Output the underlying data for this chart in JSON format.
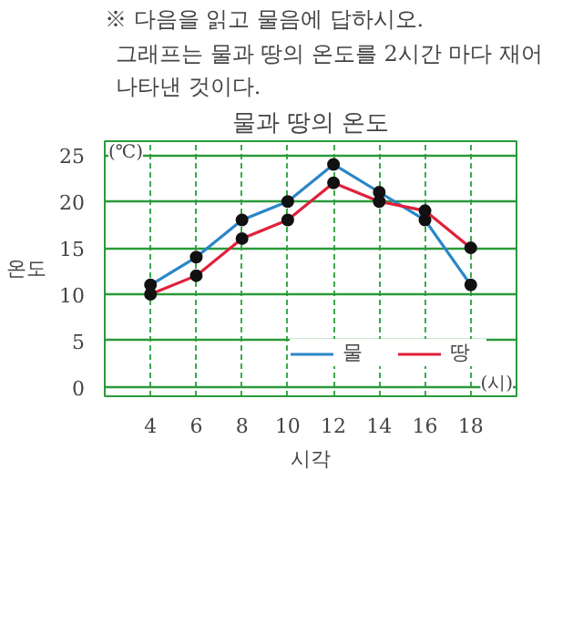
{
  "chart_data": {
    "type": "line",
    "title": "물과 땅의 온도",
    "subtitle": "그래프는 물과 땅의 온도를 2시간 마다 재어 나타낸 것이다.",
    "annotations": [
      "※ 다음을 읽고 물음에 답하시오.",
      "(℃)",
      "(시)"
    ],
    "xlabel": "시각",
    "ylabel": "온도",
    "x": [
      4,
      6,
      8,
      10,
      12,
      14,
      16,
      18
    ],
    "series": [
      {
        "name": "물",
        "color": "#2a86c8",
        "values": [
          11,
          14,
          18,
          20,
          24,
          21,
          18,
          11
        ]
      },
      {
        "name": "땅",
        "color": "#e0203a",
        "values": [
          10,
          12,
          16,
          18,
          22,
          20,
          19,
          15
        ]
      }
    ],
    "xlim": [
      2,
      20
    ],
    "xticks": [
      4,
      6,
      8,
      10,
      12,
      14,
      16,
      18
    ],
    "ylim": [
      -1,
      26.5
    ],
    "yticks": [
      0,
      5,
      10,
      15,
      20,
      25
    ],
    "grid": true,
    "legend": "bottom right",
    "marker": "circle",
    "line_style": "solid"
  }
}
